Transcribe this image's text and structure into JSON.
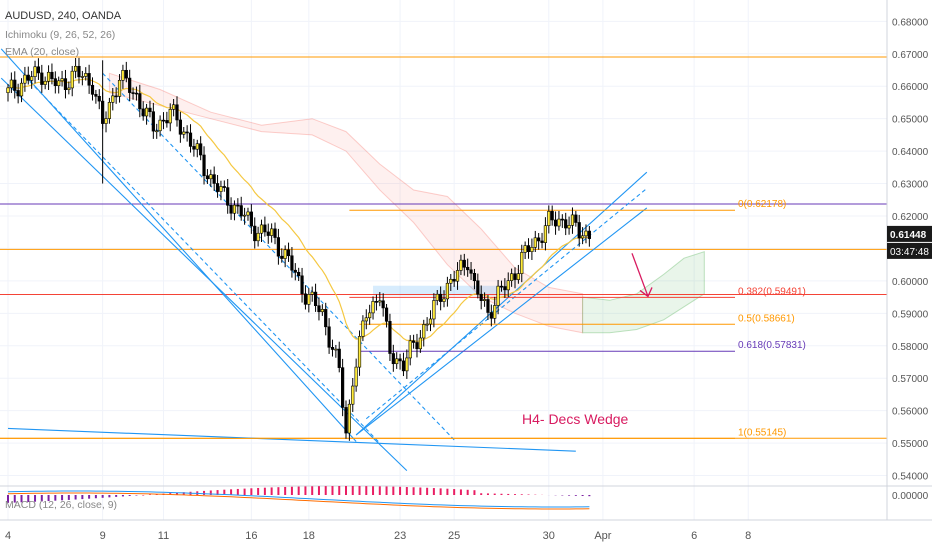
{
  "header": {
    "symbol_line": "AUDUSD, 240, OANDA",
    "ichimoku_label": "Ichimoku (9, 26, 52, 26)",
    "ema_label": "EMA (20, close)",
    "macd_label": "MACD (12, 26, close, 9)"
  },
  "price_tag": {
    "price": "0.61448",
    "countdown": "03:47:48"
  },
  "colors": {
    "up": "#ffeb3b",
    "down": "#000000",
    "trend": "#2196f3",
    "fib_0": "#ff9800",
    "fib_382": "#f44336",
    "fib_618": "#673ab7",
    "annotation": "#d81b60",
    "ema": "#f5c842"
  },
  "chart_data": {
    "type": "candlestick",
    "symbol": "AUDUSD",
    "timeframe": "240",
    "source": "OANDA",
    "y_axis": {
      "ticks": [
        "0.68000",
        "0.67000",
        "0.66000",
        "0.65000",
        "0.64000",
        "0.63000",
        "0.62000",
        "0.61000",
        "0.60000",
        "0.59000",
        "0.58000",
        "0.57000",
        "0.56000",
        "0.55000",
        "0.54000"
      ],
      "range": [
        0.538,
        0.6835
      ]
    },
    "x_axis": {
      "ticks": [
        "4",
        "9",
        "11",
        "16",
        "18",
        "23",
        "25",
        "30",
        "Apr",
        "6",
        "8"
      ],
      "tick_index": [
        0,
        28,
        46,
        72,
        89,
        116,
        132,
        160,
        176,
        203,
        219
      ],
      "range": [
        0,
        248
      ]
    },
    "fib_levels": [
      {
        "label": "0(0.62178)",
        "value": 0.62178
      },
      {
        "label": "0.382(0.59491)",
        "value": 0.59491
      },
      {
        "label": "0.5(0.58661)",
        "value": 0.58661
      },
      {
        "label": "0.618(0.57831)",
        "value": 0.57831
      },
      {
        "label": "1(0.55145)",
        "value": 0.55145
      }
    ],
    "horizontal_levels": [
      0.669,
      0.6237,
      0.6097,
      0.5958,
      0.5515
    ],
    "annotation": "H4- Decs Wedge",
    "current_price": 0.61448,
    "macd": {
      "tick": "0.00000"
    },
    "ohlc_keyframes": [
      [
        0,
        0.658
      ],
      [
        5,
        0.662
      ],
      [
        10,
        0.664
      ],
      [
        15,
        0.66
      ],
      [
        20,
        0.664
      ],
      [
        25,
        0.661
      ],
      [
        28,
        0.648
      ],
      [
        33,
        0.663
      ],
      [
        38,
        0.657
      ],
      [
        43,
        0.647
      ],
      [
        48,
        0.652
      ],
      [
        53,
        0.645
      ],
      [
        58,
        0.635
      ],
      [
        63,
        0.627
      ],
      [
        68,
        0.622
      ],
      [
        73,
        0.616
      ],
      [
        78,
        0.614
      ],
      [
        83,
        0.606
      ],
      [
        88,
        0.596
      ],
      [
        93,
        0.59
      ],
      [
        98,
        0.572
      ],
      [
        100,
        0.553
      ],
      [
        102,
        0.57
      ],
      [
        106,
        0.59
      ],
      [
        110,
        0.596
      ],
      [
        113,
        0.578
      ],
      [
        117,
        0.574
      ],
      [
        121,
        0.582
      ],
      [
        125,
        0.589
      ],
      [
        128,
        0.596
      ],
      [
        133,
        0.602
      ],
      [
        136,
        0.607
      ],
      [
        138,
        0.598
      ],
      [
        142,
        0.59
      ],
      [
        145,
        0.596
      ],
      [
        148,
        0.599
      ],
      [
        152,
        0.607
      ],
      [
        156,
        0.612
      ],
      [
        160,
        0.618
      ],
      [
        165,
        0.619
      ],
      [
        169,
        0.615
      ],
      [
        172,
        0.6145
      ]
    ]
  }
}
